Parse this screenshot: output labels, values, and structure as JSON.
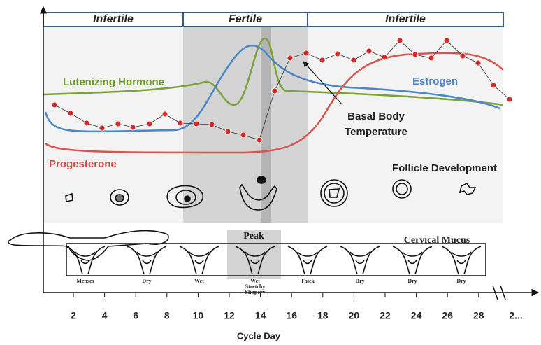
{
  "phases": [
    "Infertile",
    "Fertile",
    "Infertile"
  ],
  "curves": {
    "lh": "Lutenizing Hormone",
    "estrogen": "Estrogen",
    "progesterone": "Progesterone",
    "bbt": [
      "Basal Body",
      "Temperature"
    ]
  },
  "follicle_label": "Follicle Development",
  "mucus": {
    "peak": "Peak",
    "title": "Cervical Mucus",
    "labels": [
      [
        "Menses"
      ],
      [
        "Dry"
      ],
      [
        "Wet"
      ],
      [
        "Wet",
        "Stretchy",
        "Slippery"
      ],
      [
        "Thick"
      ],
      [
        "Dry"
      ],
      [
        "Dry"
      ],
      [
        "Dry"
      ]
    ]
  },
  "x_axis": {
    "ticks": [
      "2",
      "4",
      "6",
      "8",
      "10",
      "12",
      "14",
      "16",
      "18",
      "20",
      "22",
      "24",
      "26",
      "28",
      "2..."
    ],
    "label": "Cycle Day"
  }
}
